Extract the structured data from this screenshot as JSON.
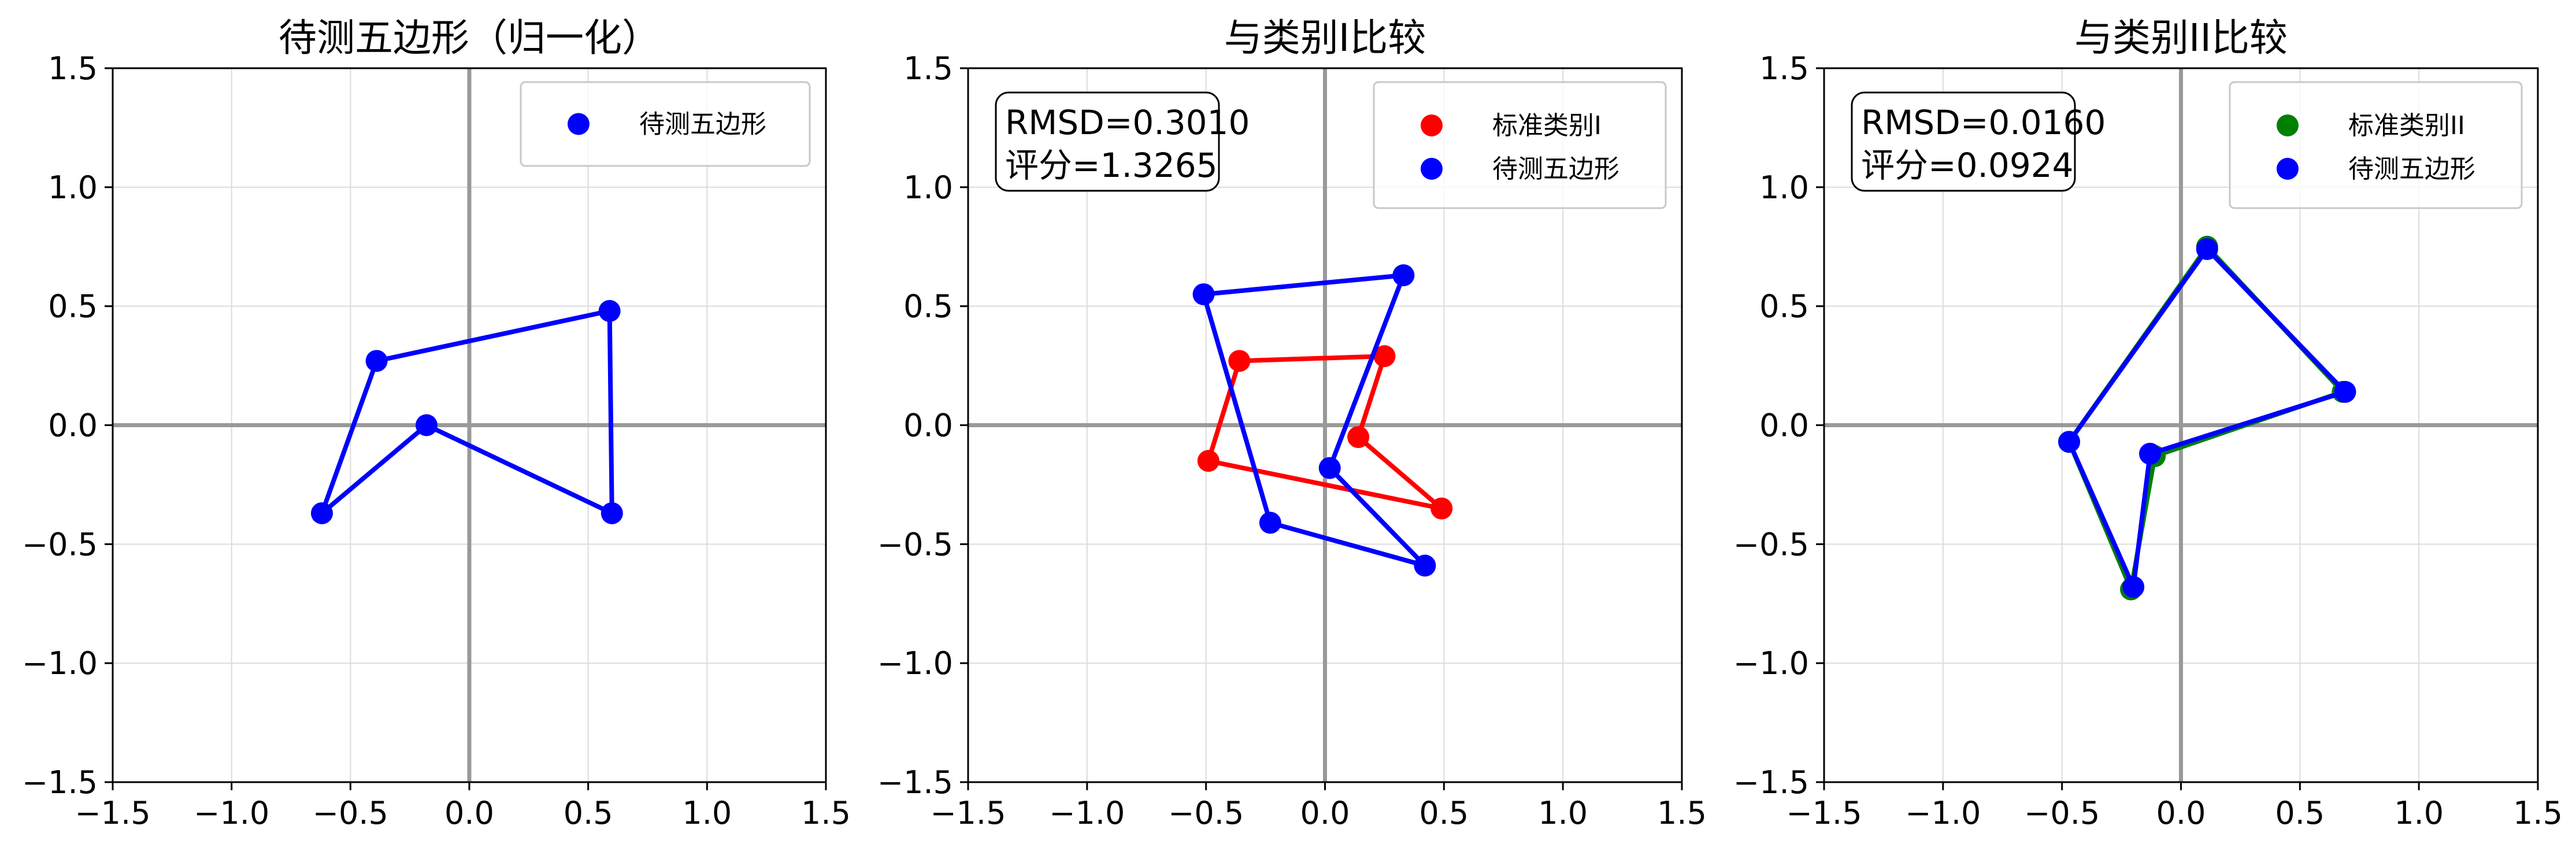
{
  "chart_data": [
    {
      "type": "scatter",
      "title": "待测五边形（归一化）",
      "xlim": [
        -1.5,
        1.5
      ],
      "ylim": [
        -1.5,
        1.5
      ],
      "xticks": [
        "−1.5",
        "−1.0",
        "−0.5",
        "0.0",
        "0.5",
        "1.0",
        "1.5"
      ],
      "yticks": [
        "−1.5",
        "−1.0",
        "−0.5",
        "0.0",
        "0.5",
        "1.0",
        "1.5"
      ],
      "grid": true,
      "legend_position": "top-right",
      "annotation": [],
      "series": [
        {
          "name": "待测五边形",
          "color": "#0000ff",
          "points": [
            [
              -0.62,
              -0.37
            ],
            [
              -0.39,
              0.27
            ],
            [
              0.59,
              0.48
            ],
            [
              0.6,
              -0.37
            ],
            [
              -0.18,
              0.0
            ]
          ]
        }
      ]
    },
    {
      "type": "scatter",
      "title": "与类别I比较",
      "xlim": [
        -1.5,
        1.5
      ],
      "ylim": [
        -1.5,
        1.5
      ],
      "xticks": [
        "−1.5",
        "−1.0",
        "−0.5",
        "0.0",
        "0.5",
        "1.0",
        "1.5"
      ],
      "yticks": [
        "−1.5",
        "−1.0",
        "−0.5",
        "0.0",
        "0.5",
        "1.0",
        "1.5"
      ],
      "grid": true,
      "legend_position": "top-right",
      "annotation": [
        "RMSD=0.3010",
        "评分=1.3265"
      ],
      "series": [
        {
          "name": "标准类别I",
          "color": "#ff0000",
          "points": [
            [
              -0.36,
              0.27
            ],
            [
              0.25,
              0.29
            ],
            [
              0.14,
              -0.05
            ],
            [
              0.49,
              -0.35
            ],
            [
              -0.49,
              -0.15
            ]
          ]
        },
        {
          "name": "待测五边形",
          "color": "#0000ff",
          "points": [
            [
              -0.51,
              0.55
            ],
            [
              0.33,
              0.63
            ],
            [
              0.02,
              -0.18
            ],
            [
              0.42,
              -0.59
            ],
            [
              -0.23,
              -0.41
            ]
          ]
        }
      ]
    },
    {
      "type": "scatter",
      "title": "与类别II比较",
      "xlim": [
        -1.5,
        1.5
      ],
      "ylim": [
        -1.5,
        1.5
      ],
      "xticks": [
        "−1.5",
        "−1.0",
        "−0.5",
        "0.0",
        "0.5",
        "1.0",
        "1.5"
      ],
      "yticks": [
        "−1.5",
        "−1.0",
        "−0.5",
        "0.0",
        "0.5",
        "1.0",
        "1.5"
      ],
      "grid": true,
      "legend_position": "top-right",
      "annotation": [
        "RMSD=0.0160",
        "评分=0.0924"
      ],
      "series": [
        {
          "name": "标准类别II",
          "color": "#008000",
          "points": [
            [
              0.11,
              0.75
            ],
            [
              0.68,
              0.14
            ],
            [
              -0.11,
              -0.13
            ],
            [
              -0.21,
              -0.69
            ],
            [
              -0.47,
              -0.07
            ]
          ]
        },
        {
          "name": "待测五边形",
          "color": "#0000ff",
          "points": [
            [
              0.11,
              0.74
            ],
            [
              0.69,
              0.14
            ],
            [
              -0.13,
              -0.12
            ],
            [
              -0.2,
              -0.68
            ],
            [
              -0.47,
              -0.07
            ]
          ]
        }
      ]
    }
  ]
}
